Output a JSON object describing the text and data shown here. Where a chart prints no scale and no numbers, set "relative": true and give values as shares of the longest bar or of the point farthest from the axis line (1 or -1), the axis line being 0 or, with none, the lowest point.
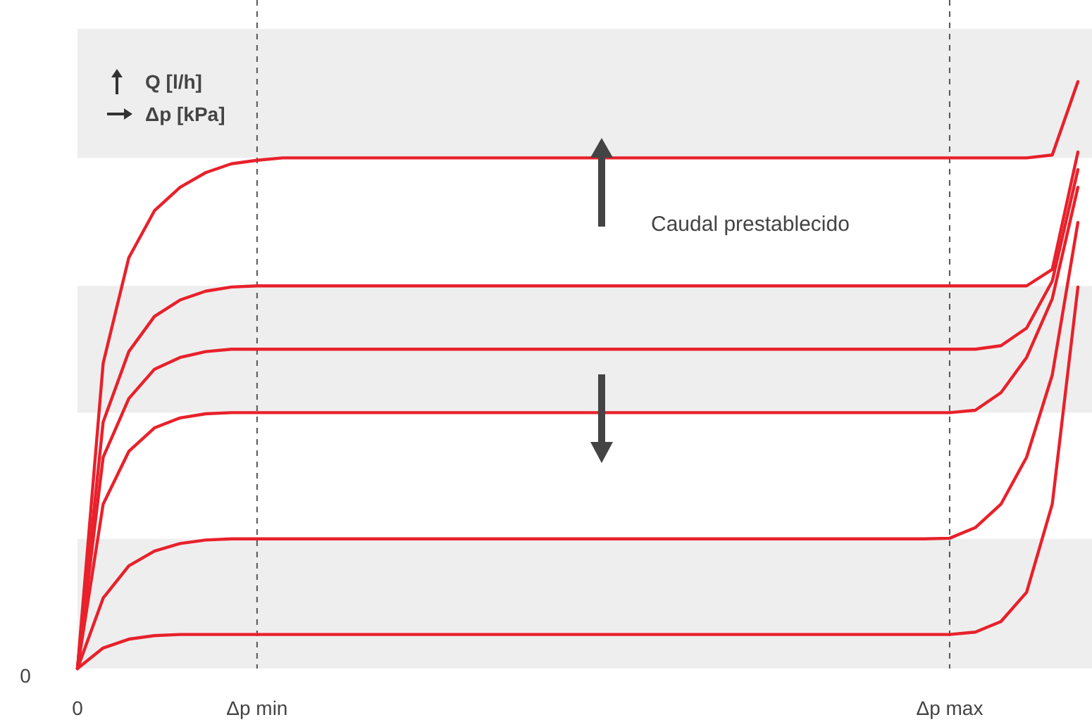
{
  "chart_data": {
    "type": "line",
    "relative": true,
    "line_style": "solid",
    "categories": [
      "0",
      null,
      null,
      null,
      null,
      null,
      null,
      "Δp min",
      null,
      null,
      null,
      null,
      null,
      null,
      null,
      null,
      null,
      null,
      null,
      null,
      null,
      null,
      null,
      null,
      null,
      null,
      null,
      null,
      null,
      null,
      null,
      null,
      null,
      null,
      "Δp max",
      null,
      null,
      null,
      null,
      null
    ],
    "ref_lines": [
      {
        "axis": "x",
        "value": "Δp min",
        "color": "#555555",
        "line_style": "dashed"
      },
      {
        "axis": "x",
        "value": "Δp max",
        "color": "#555555",
        "line_style": "dashed"
      }
    ],
    "bands": [
      {
        "axis": "y",
        "from": 0.87,
        "to": 1.09,
        "color": "#eeeeee"
      },
      {
        "axis": "y",
        "from": 0.436,
        "to": 0.652,
        "color": "#eeeeee"
      },
      {
        "axis": "y",
        "from": 0,
        "to": 0.221,
        "color": "#eeeeee"
      }
    ],
    "annotations": [
      "Q [l/h]",
      "Δp [kPa]",
      "Caudal prestablecido",
      "0"
    ],
    "series": [
      {
        "color": "#e8212b",
        "values": [
          0,
          0.52,
          0.7,
          0.78,
          0.82,
          0.845,
          0.86,
          0.866,
          0.87,
          0.87,
          0.87,
          0.87,
          0.87,
          0.87,
          0.87,
          0.87,
          0.87,
          0.87,
          0.87,
          0.87,
          0.87,
          0.87,
          0.87,
          0.87,
          0.87,
          0.87,
          0.87,
          0.87,
          0.87,
          0.87,
          0.87,
          0.87,
          0.87,
          0.87,
          0.87,
          0.87,
          0.87,
          0.87,
          0.875,
          1
        ]
      },
      {
        "color": "#e8212b",
        "values": [
          0,
          0.42,
          0.54,
          0.6,
          0.628,
          0.643,
          0.65,
          0.652,
          0.652,
          0.652,
          0.652,
          0.652,
          0.652,
          0.652,
          0.652,
          0.652,
          0.652,
          0.652,
          0.652,
          0.652,
          0.652,
          0.652,
          0.652,
          0.652,
          0.652,
          0.652,
          0.652,
          0.652,
          0.652,
          0.652,
          0.652,
          0.652,
          0.652,
          0.652,
          0.652,
          0.652,
          0.652,
          0.652,
          0.68,
          0.88
        ]
      },
      {
        "color": "#e8212b",
        "values": [
          0,
          0.36,
          0.46,
          0.51,
          0.53,
          0.54,
          0.544,
          0.544,
          0.544,
          0.544,
          0.544,
          0.544,
          0.544,
          0.544,
          0.544,
          0.544,
          0.544,
          0.544,
          0.544,
          0.544,
          0.544,
          0.544,
          0.544,
          0.544,
          0.544,
          0.544,
          0.544,
          0.544,
          0.544,
          0.544,
          0.544,
          0.544,
          0.544,
          0.544,
          0.544,
          0.544,
          0.55,
          0.58,
          0.66,
          0.85
        ]
      },
      {
        "color": "#e8212b",
        "values": [
          0,
          0.28,
          0.37,
          0.41,
          0.427,
          0.434,
          0.436,
          0.436,
          0.436,
          0.436,
          0.436,
          0.436,
          0.436,
          0.436,
          0.436,
          0.436,
          0.436,
          0.436,
          0.436,
          0.436,
          0.436,
          0.436,
          0.436,
          0.436,
          0.436,
          0.436,
          0.436,
          0.436,
          0.436,
          0.436,
          0.436,
          0.436,
          0.436,
          0.436,
          0.436,
          0.44,
          0.47,
          0.53,
          0.63,
          0.82
        ]
      },
      {
        "color": "#e8212b",
        "values": [
          0,
          0.12,
          0.175,
          0.2,
          0.213,
          0.219,
          0.221,
          0.221,
          0.221,
          0.221,
          0.221,
          0.221,
          0.221,
          0.221,
          0.221,
          0.221,
          0.221,
          0.221,
          0.221,
          0.221,
          0.221,
          0.221,
          0.221,
          0.221,
          0.221,
          0.221,
          0.221,
          0.221,
          0.221,
          0.221,
          0.221,
          0.221,
          0.221,
          0.221,
          0.222,
          0.24,
          0.28,
          0.36,
          0.5,
          0.76
        ]
      },
      {
        "color": "#e8212b",
        "values": [
          0,
          0.035,
          0.05,
          0.056,
          0.058,
          0.058,
          0.058,
          0.058,
          0.058,
          0.058,
          0.058,
          0.058,
          0.058,
          0.058,
          0.058,
          0.058,
          0.058,
          0.058,
          0.058,
          0.058,
          0.058,
          0.058,
          0.058,
          0.058,
          0.058,
          0.058,
          0.058,
          0.058,
          0.058,
          0.058,
          0.058,
          0.058,
          0.058,
          0.058,
          0.058,
          0.062,
          0.08,
          0.13,
          0.28,
          0.65
        ]
      }
    ]
  }
}
